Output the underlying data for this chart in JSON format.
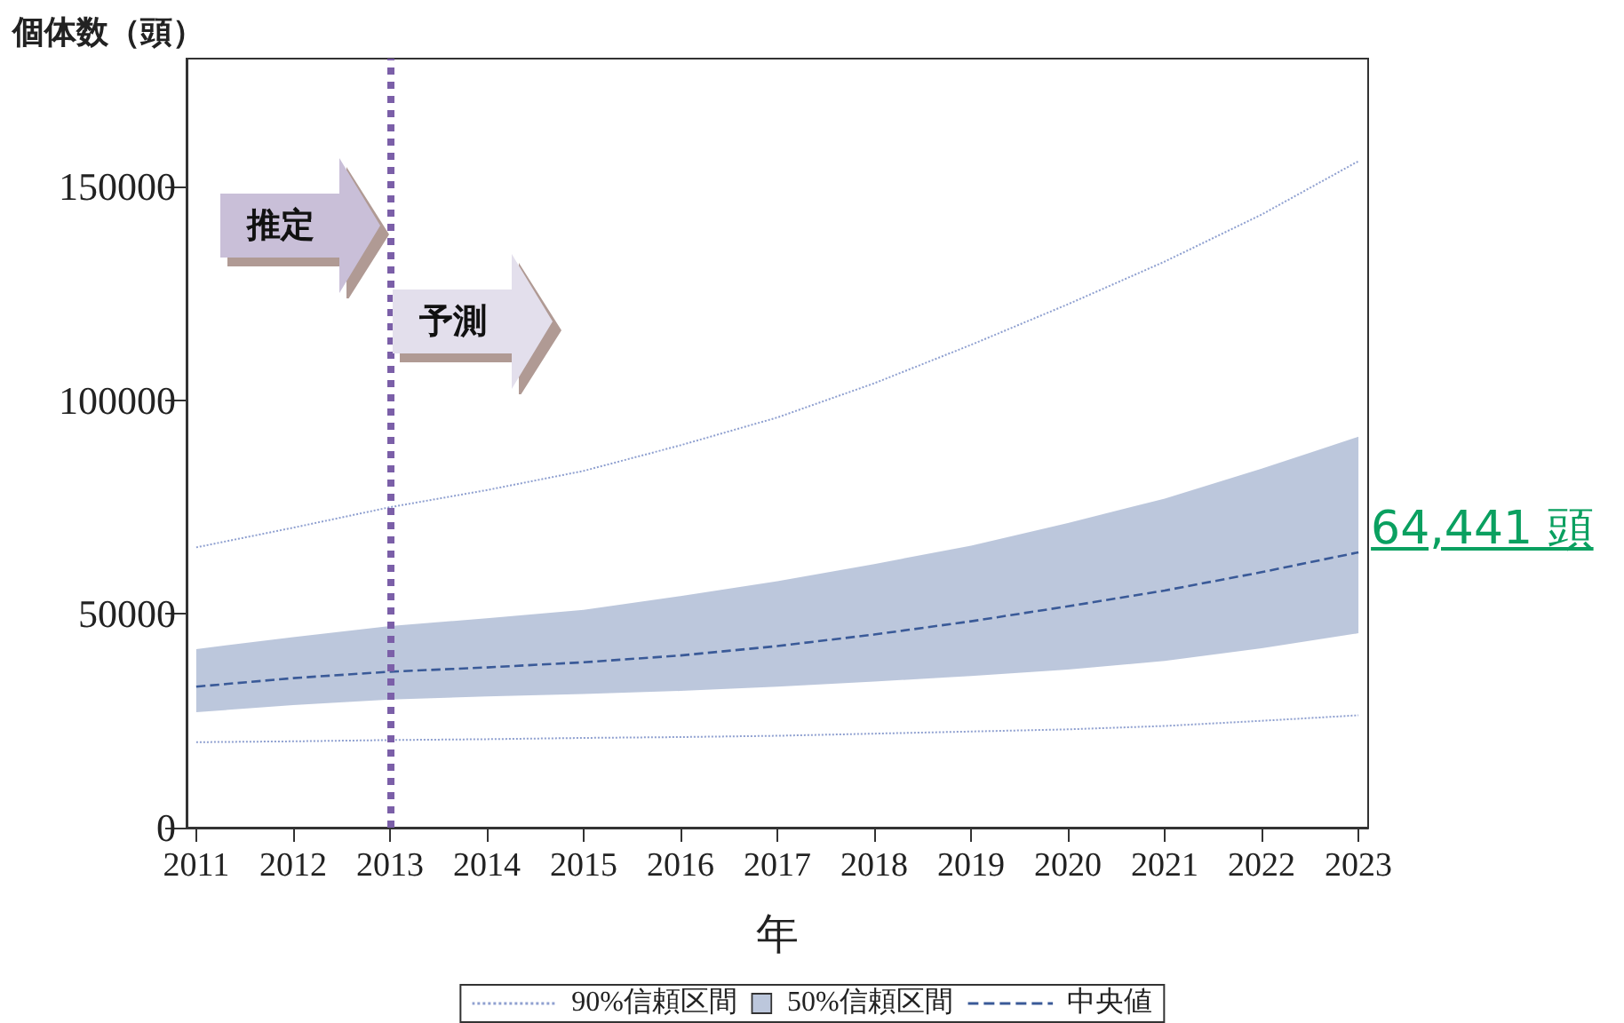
{
  "chart_data": {
    "type": "line",
    "ylabel": "個体数（頭）",
    "xlabel": "年",
    "x": [
      2011,
      2012,
      2013,
      2014,
      2015,
      2016,
      2017,
      2018,
      2019,
      2020,
      2021,
      2022,
      2023
    ],
    "xlim": [
      2010.9,
      2023.1
    ],
    "xticks": [
      2011,
      2012,
      2013,
      2014,
      2015,
      2016,
      2017,
      2018,
      2019,
      2020,
      2021,
      2022,
      2023
    ],
    "ylim": [
      0,
      180000
    ],
    "yticks": [
      0,
      50000,
      100000,
      150000
    ],
    "series": [
      {
        "name": "90%信頼区間",
        "type": "line",
        "line_style": "dotted",
        "color": "#8fa0d0",
        "values": [
          65600,
          70200,
          75000,
          79000,
          83500,
          89500,
          96000,
          104000,
          113000,
          122500,
          132500,
          143500,
          156000
        ]
      },
      {
        "type": "line",
        "line_style": "dotted",
        "color": "#8fa0d0",
        "values": [
          20000,
          20200,
          20500,
          20700,
          21000,
          21200,
          21500,
          22000,
          22500,
          23000,
          23800,
          25000,
          26300
        ]
      },
      {
        "name": "中央値",
        "type": "line",
        "line_style": "dashed",
        "color": "#3a5a98",
        "values": [
          33000,
          35000,
          36500,
          37500,
          38700,
          40300,
          42500,
          45200,
          48300,
          51800,
          55500,
          59800,
          64441
        ],
        "upper": [
          41800,
          44600,
          47200,
          49000,
          51000,
          54200,
          57700,
          61700,
          66000,
          71300,
          77000,
          84000,
          91500
        ],
        "lower": [
          27000,
          28700,
          30000,
          30700,
          31300,
          32000,
          33000,
          34200,
          35500,
          37000,
          39000,
          42000,
          45500
        ]
      }
    ],
    "ref_lines": [
      {
        "axis": "x",
        "value": 2013,
        "color": "#7b5fa8",
        "line_style": "dotted"
      }
    ],
    "annotations": [
      "推定",
      "予測",
      "50%信頼区間",
      {
        "text": "64,441 頭",
        "x": 2023,
        "y": 64441
      }
    ],
    "marker": "none",
    "grid": false,
    "legend": "bottom"
  }
}
